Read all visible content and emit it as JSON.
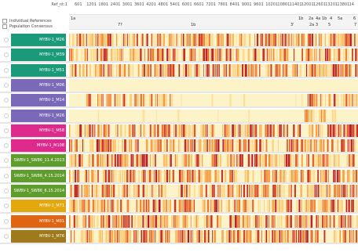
{
  "header": {
    "ruler_label": "Ref_nt:1",
    "ruler_ticks": [
      "601",
      "1201",
      "1801",
      "2401",
      "3001",
      "3601",
      "4201",
      "4801",
      "5401",
      "6001",
      "6601",
      "7201",
      "7801",
      "8401",
      "9001",
      "9601",
      "10201",
      "10801",
      "11401",
      "12001",
      "12601",
      "13201",
      "13801",
      "14"
    ],
    "annotations_row1": [
      "1a",
      "1b",
      "2a",
      "4a",
      "1b",
      "4",
      "5a",
      "6"
    ],
    "annotations_row2": [
      "7?",
      "1b",
      "3'",
      "2a 3",
      "5",
      "7"
    ]
  },
  "controls": {
    "individual_references": "Individual References",
    "population_consensus": "Population Consensus"
  },
  "colors": {
    "teal": "#1a9a78",
    "purple": "#7a68b8",
    "magenta": "#de2a8c",
    "green": "#5e9d2c",
    "gold": "#e2a80e",
    "orange": "#e06512",
    "brown": "#9e7a1d",
    "heat_low": "#fdf3c8",
    "heat_high": "#b2182b"
  },
  "tracks": [
    {
      "label": "MYBV-1_M26",
      "color": "#1a9a78"
    },
    {
      "label": "MYBV-1_M39",
      "color": "#1a9a78"
    },
    {
      "label": "MYBV-1_M51",
      "color": "#1a9a78"
    },
    {
      "label": "MYBV-1_M06",
      "color": "#7a68b8"
    },
    {
      "label": "MYBV-1_M14",
      "color": "#7a68b8"
    },
    {
      "label": "MYBV-1_M26",
      "color": "#7a68b8"
    },
    {
      "label": "MYBV-1_M58",
      "color": "#de2a8c"
    },
    {
      "label": "MYBV-1_M108",
      "color": "#de2a8c"
    },
    {
      "label": "SWBV-1_SW86_11.4.2013",
      "color": "#5e9d2c"
    },
    {
      "label": "SWBV-1_SW86_4.15.2014",
      "color": "#5e9d2c"
    },
    {
      "label": "SWBV-1_SW86_6.15.2014",
      "color": "#5e9d2c"
    },
    {
      "label": "MYBV-1_M71",
      "color": "#e2a80e"
    },
    {
      "label": "MYBV-1_M01",
      "color": "#e06512"
    },
    {
      "label": "MYBV-1_M76",
      "color": "#9e7a1d"
    }
  ]
}
